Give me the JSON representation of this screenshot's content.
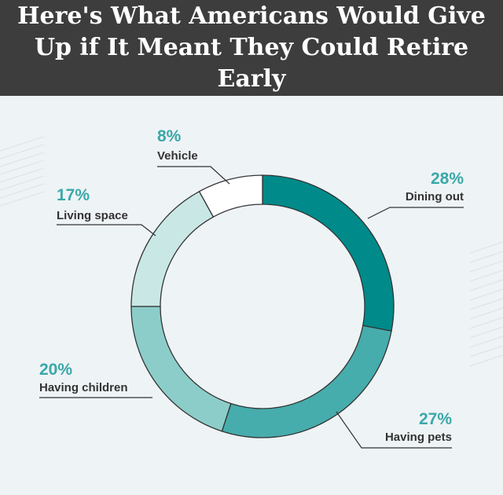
{
  "chart_data": {
    "type": "pie",
    "style": "donut",
    "title": "Here's What Americans Would Give Up if It Meant They Could Retire Early",
    "unit": "%",
    "slices": [
      {
        "label": "Dining out",
        "value": 28,
        "value_label": "28%",
        "color": "#008a8a"
      },
      {
        "label": "Having pets",
        "value": 27,
        "value_label": "27%",
        "color": "#47acac"
      },
      {
        "label": "Having children",
        "value": 20,
        "value_label": "20%",
        "color": "#8ccdca"
      },
      {
        "label": "Living space",
        "value": 17,
        "value_label": "17%",
        "color": "#c9e8e5"
      },
      {
        "label": "Vehicle",
        "value": 8,
        "value_label": "8%",
        "color": "#ffffff"
      }
    ]
  },
  "colors": {
    "header_background": "#3d3d3d",
    "page_background": "#eef3f6",
    "percent_text": "#3aa8a8",
    "outline": "#333333"
  }
}
